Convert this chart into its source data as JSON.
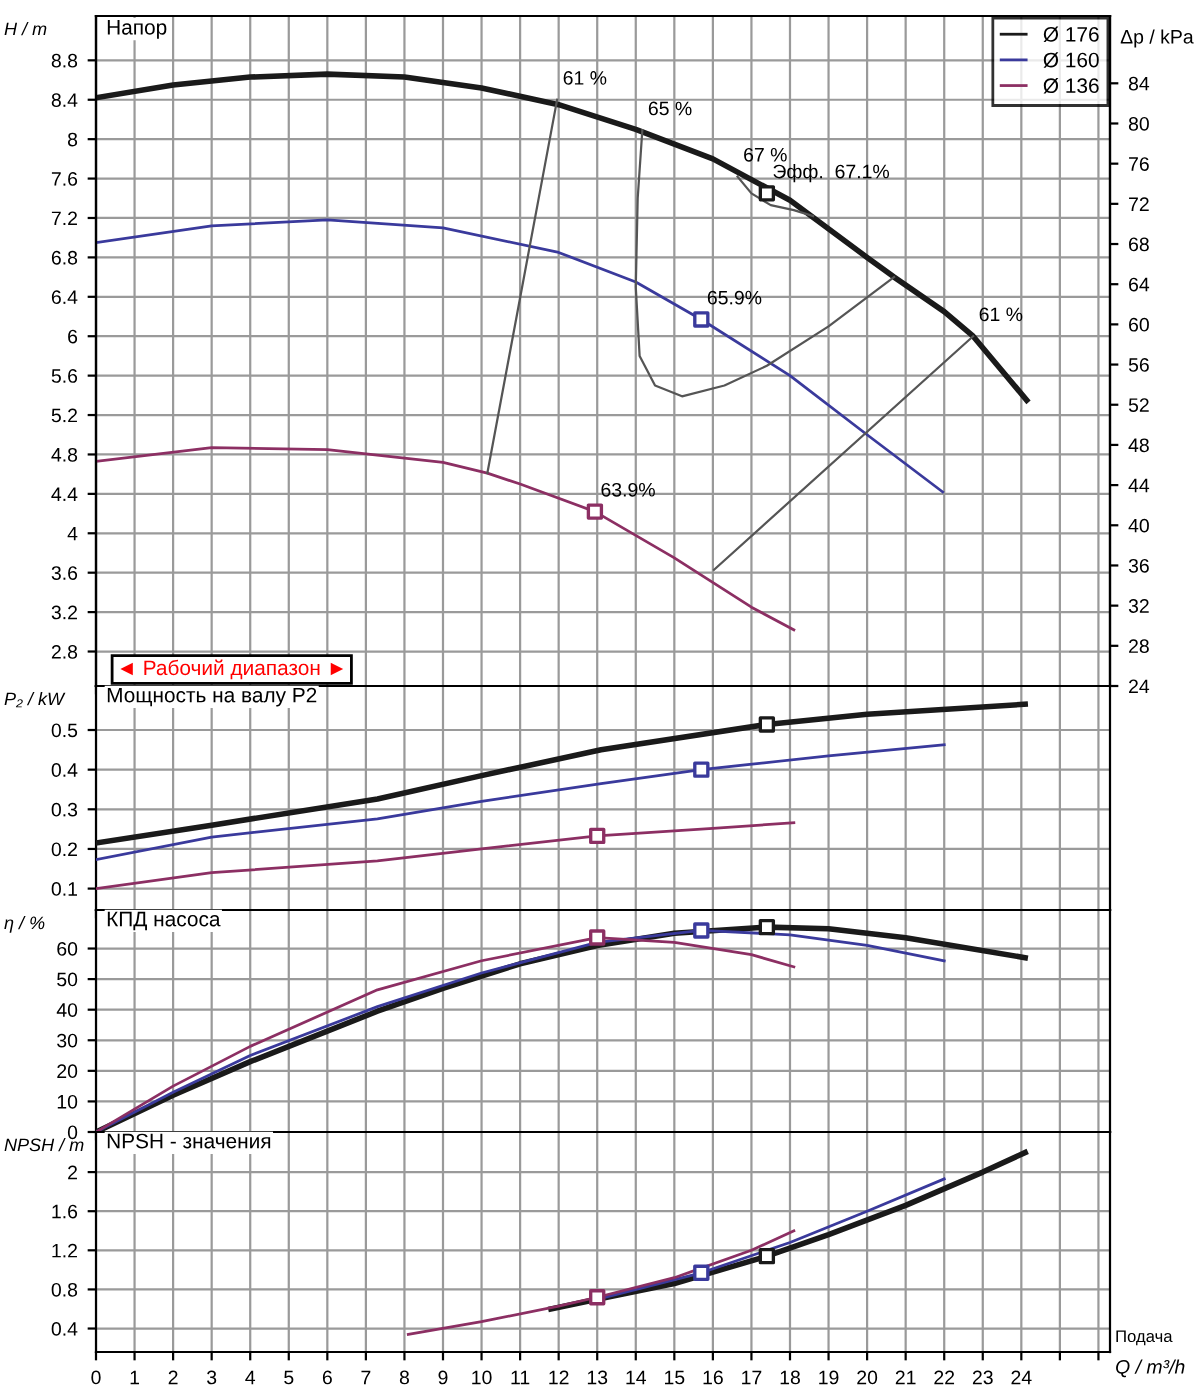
{
  "chart_data": [
    {
      "type": "line",
      "title": "Напор",
      "ylabel": "H / m",
      "y2label": "Δp / kPa",
      "xlim": [
        0,
        26.3
      ],
      "xticks": [
        0,
        1,
        2,
        3,
        4,
        5,
        6,
        7,
        8,
        9,
        10,
        11,
        12,
        13,
        14,
        15,
        16,
        17,
        18,
        19,
        20,
        21,
        22,
        23,
        24,
        25,
        26
      ],
      "ylim": [
        2.45,
        9.25
      ],
      "yticks": [
        2.8,
        3.2,
        3.6,
        4,
        4.4,
        4.8,
        5.2,
        5.6,
        6,
        6.4,
        6.8,
        7.2,
        7.6,
        8,
        8.4,
        8.8
      ],
      "y2lim": [
        24,
        90.7
      ],
      "y2ticks": [
        24,
        28,
        32,
        36,
        40,
        44,
        48,
        52,
        56,
        60,
        64,
        68,
        72,
        76,
        80,
        84
      ],
      "grid": true,
      "legend": "top right",
      "tick_labels": "y",
      "series": [
        {
          "name": "Ø 176",
          "color": "#1a1a1a",
          "x": [
            0,
            2,
            4,
            6,
            8,
            10,
            12,
            14,
            16,
            18,
            20,
            20.7,
            22,
            22.75,
            24.14
          ],
          "values": [
            8.42,
            8.55,
            8.63,
            8.66,
            8.63,
            8.52,
            8.35,
            8.1,
            7.8,
            7.38,
            6.8,
            6.6,
            6.25,
            6.0,
            5.35
          ]
        },
        {
          "name": "Ø 160",
          "color": "#3a3a9c",
          "x": [
            0,
            3,
            6,
            9,
            12,
            14,
            15.7,
            18,
            20,
            21.96
          ],
          "values": [
            6.95,
            7.12,
            7.18,
            7.1,
            6.85,
            6.55,
            6.17,
            5.6,
            5.0,
            4.42
          ]
        },
        {
          "name": "Ø 136",
          "color": "#8c2f63",
          "x": [
            0,
            3,
            6,
            9,
            10.15,
            11,
            12.94,
            15,
            17,
            18.1
          ],
          "values": [
            4.73,
            4.87,
            4.85,
            4.72,
            4.61,
            4.5,
            4.22,
            3.75,
            3.25,
            3.02
          ]
        },
        {
          "type": "line",
          "color": "#555555",
          "x": [
            10.15,
            11.96
          ],
          "values": [
            4.61,
            8.4
          ]
        },
        {
          "type": "line",
          "color": "#555555",
          "x": [
            16.03,
            22.75
          ],
          "values": [
            3.63,
            6.0
          ]
        },
        {
          "type": "line",
          "color": "#555555",
          "x": [
            14.17,
            14.05,
            14.0,
            14.1,
            14.5,
            15.2,
            16.3,
            17.4,
            19,
            20.7
          ],
          "values": [
            8.09,
            7.4,
            6.5,
            5.8,
            5.5,
            5.39,
            5.5,
            5.7,
            6.1,
            6.6
          ]
        },
        {
          "type": "line",
          "color": "#555555",
          "x": [
            16.64,
            17.0,
            17.5,
            18.1,
            18.6
          ],
          "values": [
            7.62,
            7.45,
            7.33,
            7.28,
            7.22
          ]
        },
        {
          "type": "scatter",
          "marker": "square",
          "color": "#1a1a1a",
          "x": [
            17.4
          ],
          "values": [
            7.45
          ]
        },
        {
          "type": "scatter",
          "marker": "square",
          "color": "#3a3a9c",
          "x": [
            15.7
          ],
          "values": [
            6.17
          ]
        },
        {
          "type": "scatter",
          "marker": "square",
          "color": "#8c2f63",
          "x": [
            12.94
          ],
          "values": [
            4.22
          ]
        }
      ],
      "annotations": [
        {
          "text": "61 %",
          "x": 11.96,
          "y": 8.4
        },
        {
          "text": "65 %",
          "x": 14.17,
          "y": 8.09
        },
        {
          "text": "67 %",
          "x": 16.64,
          "y": 7.62
        },
        {
          "text": "Эфф.  67.1%",
          "x": 17.4,
          "y": 7.45
        },
        {
          "text": "61 %",
          "x": 22.75,
          "y": 6.0
        },
        {
          "text": "65.9%",
          "x": 15.7,
          "y": 6.17
        },
        {
          "text": "63.9%",
          "x": 12.94,
          "y": 4.22
        },
        "◄ Рабочий диапазон ►"
      ]
    },
    {
      "type": "line",
      "title": "Мощность на валу P2",
      "ylabel": "P₂ / kW",
      "xlim": [
        0,
        26.3
      ],
      "xticks": [
        0,
        1,
        2,
        3,
        4,
        5,
        6,
        7,
        8,
        9,
        10,
        11,
        12,
        13,
        14,
        15,
        16,
        17,
        18,
        19,
        20,
        21,
        22,
        23,
        24,
        25,
        26
      ],
      "ylim": [
        0.046,
        0.611
      ],
      "yticks": [
        0.1,
        0.2,
        0.3,
        0.4,
        0.5
      ],
      "grid": true,
      "tick_labels": "y",
      "series": [
        {
          "color": "#1a1a1a",
          "x": [
            0,
            3,
            7.3,
            10,
            13.1,
            17.4,
            20,
            24.1
          ],
          "values": [
            0.215,
            0.26,
            0.326,
            0.385,
            0.45,
            0.514,
            0.54,
            0.565
          ]
        },
        {
          "color": "#3a3a9c",
          "x": [
            0,
            3,
            7.3,
            10,
            13.1,
            15.7,
            19,
            22
          ],
          "values": [
            0.173,
            0.23,
            0.276,
            0.32,
            0.365,
            0.4,
            0.435,
            0.463
          ]
        },
        {
          "color": "#8c2f63",
          "x": [
            0,
            3,
            7.3,
            10,
            13,
            16,
            18.1
          ],
          "values": [
            0.1,
            0.14,
            0.17,
            0.2,
            0.233,
            0.252,
            0.266
          ]
        },
        {
          "type": "scatter",
          "marker": "square",
          "color": "#1a1a1a",
          "x": [
            17.4
          ],
          "values": [
            0.514
          ]
        },
        {
          "type": "scatter",
          "marker": "square",
          "color": "#3a3a9c",
          "x": [
            15.7
          ],
          "values": [
            0.4
          ]
        },
        {
          "type": "scatter",
          "marker": "square",
          "color": "#8c2f63",
          "x": [
            13
          ],
          "values": [
            0.233
          ]
        }
      ]
    },
    {
      "type": "line",
      "title": "КПД насоса",
      "ylabel": "η / %",
      "xlim": [
        0,
        26.3
      ],
      "xticks": [
        0,
        1,
        2,
        3,
        4,
        5,
        6,
        7,
        8,
        9,
        10,
        11,
        12,
        13,
        14,
        15,
        16,
        17,
        18,
        19,
        20,
        21,
        22,
        23,
        24,
        25,
        26
      ],
      "ylim": [
        0,
        72.6
      ],
      "yticks": [
        0,
        10,
        20,
        30,
        40,
        50,
        60
      ],
      "grid": true,
      "tick_labels": "y",
      "series": [
        {
          "color": "#1a1a1a",
          "x": [
            0,
            2,
            4,
            6,
            7.3,
            9,
            11,
            13,
            15,
            17.4,
            19,
            21,
            24.1
          ],
          "values": [
            0,
            12,
            23,
            33,
            39.5,
            47,
            55,
            61,
            65,
            67,
            66.5,
            63.5,
            57
          ]
        },
        {
          "color": "#3a3a9c",
          "x": [
            0,
            2,
            4,
            7.3,
            10,
            13,
            15.7,
            18,
            20,
            22
          ],
          "values": [
            0,
            13,
            25,
            41,
            52,
            62,
            65.9,
            64.5,
            61,
            56
          ]
        },
        {
          "color": "#8c2f63",
          "x": [
            0,
            2,
            4,
            7.3,
            10,
            13,
            15,
            17,
            18.1
          ],
          "values": [
            0,
            15,
            28,
            46.5,
            56,
            63.6,
            62,
            58,
            54
          ]
        },
        {
          "type": "scatter",
          "marker": "square",
          "color": "#1a1a1a",
          "x": [
            17.4
          ],
          "values": [
            67
          ]
        },
        {
          "type": "scatter",
          "marker": "square",
          "color": "#3a3a9c",
          "x": [
            15.7
          ],
          "values": [
            65.9
          ]
        },
        {
          "type": "scatter",
          "marker": "square",
          "color": "#8c2f63",
          "x": [
            13
          ],
          "values": [
            63.6
          ]
        }
      ]
    },
    {
      "type": "line",
      "title": "NPSH - значения",
      "ylabel": "NPSH / m",
      "xlabel": "Q / m³/h",
      "xlim": [
        0,
        26.3
      ],
      "xticks": [
        0,
        1,
        2,
        3,
        4,
        5,
        6,
        7,
        8,
        9,
        10,
        11,
        12,
        13,
        14,
        15,
        16,
        17,
        18,
        19,
        20,
        21,
        22,
        23,
        24,
        {
          "value": 25,
          "label": null
        },
        {
          "value": 26,
          "label": null
        }
      ],
      "ylim": [
        0.16,
        2.41
      ],
      "yticks": [
        0.4,
        0.8,
        1.2,
        1.6,
        2
      ],
      "grid": true,
      "series": [
        {
          "color": "#1a1a1a",
          "x": [
            11.8,
            13,
            15,
            17.4,
            19,
            21,
            23,
            24.1
          ],
          "values": [
            0.6,
            0.7,
            0.86,
            1.14,
            1.36,
            1.66,
            2.0,
            2.2
          ]
        },
        {
          "color": "#3a3a9c",
          "x": [
            13,
            15.7,
            18,
            20,
            22
          ],
          "values": [
            0.7,
            0.97,
            1.28,
            1.6,
            1.93
          ]
        },
        {
          "color": "#8c2f63",
          "x": [
            8.1,
            10,
            12,
            13,
            15,
            17,
            18.1
          ],
          "values": [
            0.34,
            0.47,
            0.63,
            0.72,
            0.92,
            1.2,
            1.4
          ]
        },
        {
          "type": "scatter",
          "marker": "square",
          "color": "#1a1a1a",
          "x": [
            17.4
          ],
          "values": [
            1.14
          ]
        },
        {
          "type": "scatter",
          "marker": "square",
          "color": "#3a3a9c",
          "x": [
            15.7
          ],
          "values": [
            0.97
          ]
        },
        {
          "type": "scatter",
          "marker": "square",
          "color": "#8c2f63",
          "x": [
            13
          ],
          "values": [
            0.72
          ]
        }
      ],
      "annotations": [
        "Подача"
      ]
    }
  ]
}
